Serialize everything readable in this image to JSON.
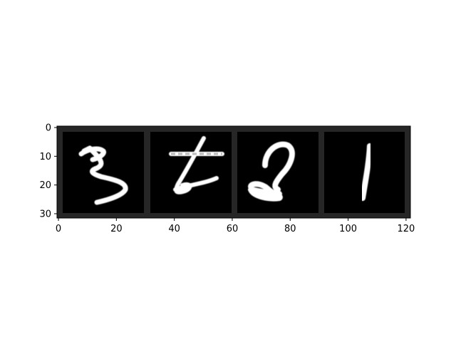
{
  "image": {
    "description_visible": "MNIST-style grid of handwritten digits",
    "grid_color": "#262626",
    "panel_background": "#000000",
    "stroke_color": "#ffffff",
    "tiles": [
      {
        "digit": "3"
      },
      {
        "digit": "6"
      },
      {
        "digit": "2"
      },
      {
        "digit": "1"
      }
    ]
  },
  "axes": {
    "x_ticks": [
      "0",
      "20",
      "40",
      "60",
      "80",
      "100",
      "120"
    ],
    "y_ticks": [
      "0",
      "10",
      "20",
      "30"
    ],
    "xlim": [
      -0.5,
      121.5
    ],
    "ylim": [
      31.5,
      -0.5
    ]
  }
}
